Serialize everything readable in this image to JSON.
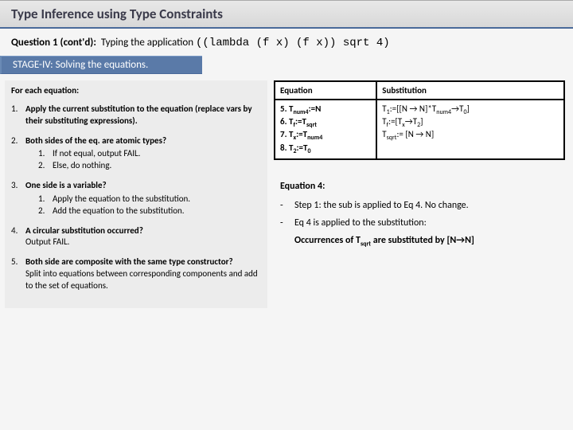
{
  "title": "Type Inference using Type Constraints",
  "question": {
    "label": "Question 1 (cont'd):",
    "prefix": "Typing the application",
    "code": "((lambda (f x) (f x)) sqrt 4)"
  },
  "stage": "STAGE-IV: Solving the equations.",
  "left": {
    "header": "For each equation:",
    "steps": [
      {
        "n": "1.",
        "text": "Apply the current substitution to the equation (replace vars by their substituting expressions).",
        "sub": []
      },
      {
        "n": "2.",
        "text": "Both sides of the eq. are atomic types?",
        "sub": [
          {
            "sn": "1.",
            "t": "If not equal, output FAIL."
          },
          {
            "sn": "2.",
            "t": "Else, do nothing."
          }
        ]
      },
      {
        "n": "3.",
        "text": "One side is a variable?",
        "sub": [
          {
            "sn": "1.",
            "t": "Apply the equation to the substitution."
          },
          {
            "sn": "2.",
            "t": "Add the equation to the substitution."
          }
        ]
      },
      {
        "n": "4.",
        "text": "A circular substitution occurred?\nOutput FAIL.",
        "sub": []
      },
      {
        "n": "5.",
        "text": "Both side are composite with the same type constructor?\nSplit into equations between corresponding components and add to the set of equations.",
        "sub": []
      }
    ]
  },
  "table": {
    "headers": [
      "Equation",
      "Substitution"
    ],
    "eq_lines": [
      "5. T_num4:=N",
      "6. T_f:=T_sqrt",
      "7. T_x:=T_num4",
      "8. T_2:=T_0"
    ],
    "sub_lines": [
      "T_1:=[[N → N]*T_num4→T_0]",
      "T_f:=[T_x→T_2]",
      "T_sqrt:= [N → N]"
    ]
  },
  "eq4": {
    "header": "Equation 4:",
    "lines": [
      "Step 1: the sub is applied to Eq 4. No change.",
      "Eq 4 is applied to the substitution:"
    ],
    "result": "Occurrences of T_sqrt are substituted by [N→N]"
  }
}
